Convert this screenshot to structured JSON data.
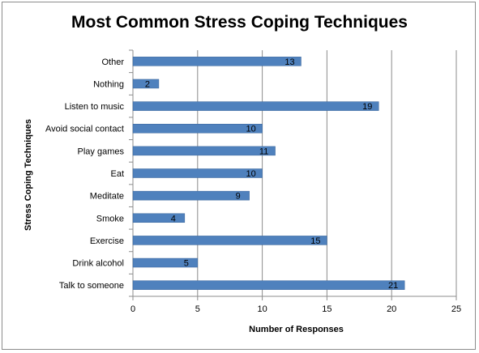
{
  "chart_data": {
    "type": "bar",
    "orientation": "horizontal",
    "title": "Most Common Stress Coping Techniques",
    "xlabel": "Number of Responses",
    "ylabel": "Stress Coping Techniques",
    "categories": [
      "Other",
      "Nothing",
      "Listen to music",
      "Avoid social contact",
      "Play games",
      "Eat",
      "Meditate",
      "Smoke",
      "Exercise",
      "Drink alcohol",
      "Talk to someone"
    ],
    "values": [
      13,
      2,
      19,
      10,
      11,
      10,
      9,
      4,
      15,
      5,
      21
    ],
    "xlim": [
      0,
      25
    ],
    "xticks": [
      0,
      5,
      10,
      15,
      20,
      25
    ],
    "grid": "vertical",
    "legend": "none",
    "bar_color": "#4f81bd"
  }
}
